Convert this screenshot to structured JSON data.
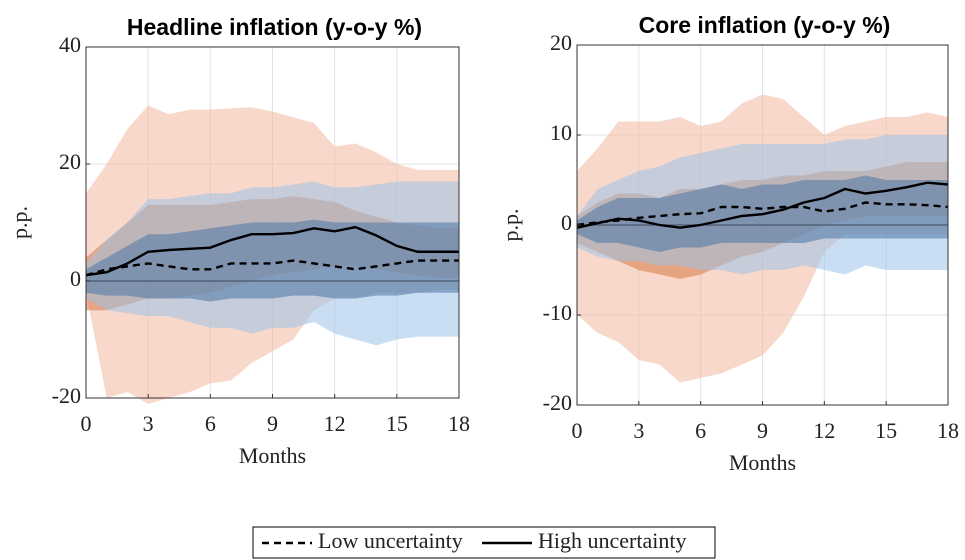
{
  "chart_data": [
    {
      "type": "line",
      "title": "Headline inflation (y-o-y %)",
      "x_label": "Months",
      "y_label": "p.p.",
      "x": [
        0,
        1,
        2,
        3,
        4,
        5,
        6,
        7,
        8,
        9,
        10,
        11,
        12,
        13,
        14,
        15,
        16,
        17,
        18
      ],
      "xlim": [
        0,
        18
      ],
      "xticks": [
        0,
        3,
        6,
        9,
        12,
        15,
        18
      ],
      "ylim": [
        -20,
        40
      ],
      "yticks": [
        -20,
        0,
        20,
        40
      ],
      "grid": true,
      "zero_line": true,
      "bands": [
        {
          "color": "#f2b8a0",
          "upper": [
            15,
            20,
            26,
            30,
            28.5,
            29.3,
            29.3,
            29.5,
            29.7,
            29,
            28,
            27,
            23,
            23.5,
            22,
            20,
            19,
            19,
            19
          ],
          "lower": [
            -2,
            -20,
            -19,
            -21,
            -20,
            -19,
            -17.5,
            -17,
            -14,
            -12,
            -10,
            -5,
            -3,
            -3,
            -2,
            -2,
            -2,
            -1.5,
            -1.5
          ]
        },
        {
          "color": "#d97a45",
          "upper": [
            4,
            7,
            10,
            13,
            13,
            13,
            13,
            13.5,
            14,
            14,
            14.5,
            14,
            13.5,
            12,
            11,
            10,
            9.5,
            9,
            9
          ],
          "lower": [
            -5,
            -5,
            -4,
            -3,
            -3,
            -2.5,
            -2,
            -1,
            0,
            1,
            1.5,
            2,
            2.5,
            2.5,
            2,
            1.5,
            1,
            0.5,
            0.5
          ]
        },
        {
          "color": "#9cc3e8",
          "upper": [
            3,
            7,
            10,
            14,
            14,
            14.5,
            15,
            15,
            16,
            16,
            16.5,
            17,
            16,
            16,
            16.5,
            17,
            17,
            17,
            17
          ],
          "lower": [
            -3,
            -5,
            -5.5,
            -6,
            -6,
            -7,
            -8,
            -8,
            -9,
            -8,
            -8,
            -7,
            -9,
            -10,
            -11,
            -10,
            -9.5,
            -9.5,
            -9.5
          ]
        },
        {
          "color": "#4a74a6",
          "upper": [
            2,
            4,
            6,
            8,
            8,
            8.5,
            9,
            9.5,
            10,
            10,
            10,
            10.5,
            10,
            10,
            10,
            10,
            10,
            10,
            10
          ],
          "lower": [
            -2,
            -2.5,
            -2.5,
            -3,
            -3,
            -3,
            -3.5,
            -3,
            -3,
            -3,
            -2.5,
            -2.5,
            -3,
            -3,
            -2.5,
            -2.5,
            -2,
            -2,
            -2
          ]
        }
      ],
      "series": [
        {
          "name": "Low uncertainty",
          "color": "#000000",
          "style": "dashed",
          "values": [
            1,
            2,
            2.5,
            3,
            2.5,
            2,
            2,
            3,
            3,
            3,
            3.5,
            3,
            2.5,
            2,
            2.5,
            3,
            3.5,
            3.5,
            3.5
          ]
        },
        {
          "name": "High uncertainty",
          "color": "#000000",
          "style": "solid",
          "values": [
            1,
            1.5,
            3,
            5,
            5.3,
            5.5,
            5.7,
            7,
            8,
            8,
            8.2,
            9,
            8.5,
            9.2,
            7.8,
            6,
            5,
            5,
            5
          ]
        }
      ]
    },
    {
      "type": "line",
      "title": "Core inflation (y-o-y %)",
      "x_label": "Months",
      "y_label": "p.p.",
      "x": [
        0,
        1,
        2,
        3,
        4,
        5,
        6,
        7,
        8,
        9,
        10,
        11,
        12,
        13,
        14,
        15,
        16,
        17,
        18
      ],
      "xlim": [
        0,
        18
      ],
      "xticks": [
        0,
        3,
        6,
        9,
        12,
        15,
        18
      ],
      "ylim": [
        -20,
        20
      ],
      "yticks": [
        -20,
        -10,
        0,
        10,
        20
      ],
      "grid": true,
      "zero_line": true,
      "bands": [
        {
          "color": "#f2b8a0",
          "upper": [
            6,
            8.5,
            11.5,
            11.5,
            11.5,
            12,
            11,
            11.5,
            13.5,
            14.5,
            14,
            12,
            10,
            11,
            11.5,
            12,
            12,
            12.5,
            12
          ],
          "lower": [
            -10,
            -12,
            -13,
            -15,
            -15.5,
            -17.5,
            -17,
            -16.5,
            -15.5,
            -14.5,
            -12,
            -8,
            -3,
            -1,
            -1,
            -1,
            -1,
            -1,
            -1
          ]
        },
        {
          "color": "#d97a45",
          "upper": [
            1,
            2.5,
            3.5,
            3.5,
            3,
            4,
            4,
            4.5,
            5,
            5,
            5.5,
            5.5,
            6,
            6,
            6,
            6.5,
            7,
            7,
            7
          ],
          "lower": [
            -2,
            -3,
            -4,
            -5,
            -5.5,
            -6,
            -5.5,
            -4.5,
            -3.5,
            -3,
            -2,
            -1,
            0,
            0.5,
            1,
            1,
            1,
            1,
            1
          ]
        },
        {
          "color": "#9cc3e8",
          "upper": [
            1,
            4,
            5,
            6,
            6.5,
            7.5,
            8,
            8.5,
            9,
            9,
            9,
            9,
            9,
            9.5,
            9.5,
            10,
            10,
            10,
            10
          ],
          "lower": [
            -2.5,
            -3.5,
            -4,
            -4,
            -4.5,
            -4.5,
            -5,
            -5,
            -5.5,
            -5,
            -5,
            -4.5,
            -5,
            -5.5,
            -4.5,
            -5,
            -5,
            -5,
            -5
          ]
        },
        {
          "color": "#4a74a6",
          "upper": [
            0.5,
            2,
            3,
            3,
            3,
            3.5,
            4,
            4.5,
            4,
            4.5,
            4.5,
            5,
            5,
            5,
            5.5,
            5,
            5,
            5,
            5
          ],
          "lower": [
            -1,
            -2,
            -2,
            -2.5,
            -3,
            -2.5,
            -2.5,
            -2,
            -2,
            -2,
            -2,
            -2,
            -1.5,
            -1.5,
            -1.5,
            -1.5,
            -1.5,
            -1.5,
            -1.5
          ]
        }
      ],
      "series": [
        {
          "color": "#000000",
          "style": "dashed",
          "values": [
            0,
            0.3,
            0.5,
            0.8,
            1,
            1.2,
            1.3,
            2,
            2,
            1.8,
            2,
            2,
            1.5,
            1.8,
            2.5,
            2.3,
            2.3,
            2.2,
            2
          ]
        },
        {
          "color": "#000000",
          "style": "solid",
          "values": [
            -0.3,
            0.2,
            0.7,
            0.5,
            0,
            -0.3,
            0,
            0.5,
            1,
            1.2,
            1.7,
            2.5,
            3,
            4,
            3.5,
            3.8,
            4.2,
            4.7,
            4.5
          ]
        }
      ]
    }
  ]
}
